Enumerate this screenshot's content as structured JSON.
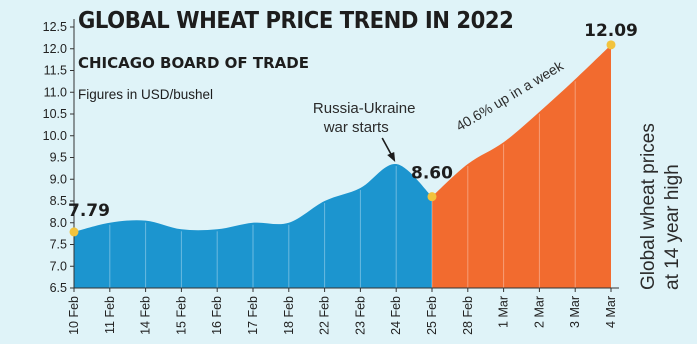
{
  "header": {
    "title": "GLOBAL WHEAT PRICE TREND IN 2022",
    "subtitle": "CHICAGO BOARD OF TRADE",
    "units_note": "Figures in USD/bushel"
  },
  "side_note": {
    "line1": "Global wheat prices",
    "line2": "at 14 year high"
  },
  "colors": {
    "background": "#dff3f8",
    "pre_war": "#1c95cf",
    "post_war": "#f26b2f",
    "marker": "#f2c33d",
    "text": "#1d1d1d"
  },
  "chart_data": {
    "type": "area",
    "title": "GLOBAL WHEAT PRICE TREND IN 2022",
    "subtitle": "CHICAGO BOARD OF TRADE",
    "ylabel": "Figures in USD/bushel",
    "categories": [
      "10 Feb",
      "11 Feb",
      "14 Feb",
      "15 Feb",
      "16 Feb",
      "17 Feb",
      "18 Feb",
      "22 Feb",
      "23 Feb",
      "24 Feb",
      "25 Feb",
      "28 Feb",
      "1 Mar",
      "2 Mar",
      "3 Mar",
      "4 Mar"
    ],
    "series": [
      {
        "values": [
          7.79,
          8.0,
          8.05,
          7.85,
          7.85,
          8.0,
          8.0,
          8.5,
          8.8,
          9.35,
          8.6,
          9.35,
          9.85,
          10.55,
          11.3,
          12.09
        ]
      }
    ],
    "yticks": [
      "6.5",
      "7.0",
      "7.5",
      "8.0",
      "8.5",
      "9.0",
      "9.5",
      "10.0",
      "10.5",
      "11.0",
      "11.5",
      "12.0",
      "12.5"
    ],
    "ylim": [
      6.5,
      12.5
    ],
    "grid": false,
    "highlights": [
      {
        "category": "10 Feb",
        "label": "7.79"
      },
      {
        "category": "25 Feb",
        "label": "8.60"
      },
      {
        "category": "4 Mar",
        "label": "12.09"
      }
    ],
    "annotations": {
      "event_line1": "Russia-Ukraine",
      "event_line2": "war starts",
      "event_category": "24 Feb",
      "rise_text": "40.6% up in a week"
    },
    "split_category": "25 Feb"
  }
}
